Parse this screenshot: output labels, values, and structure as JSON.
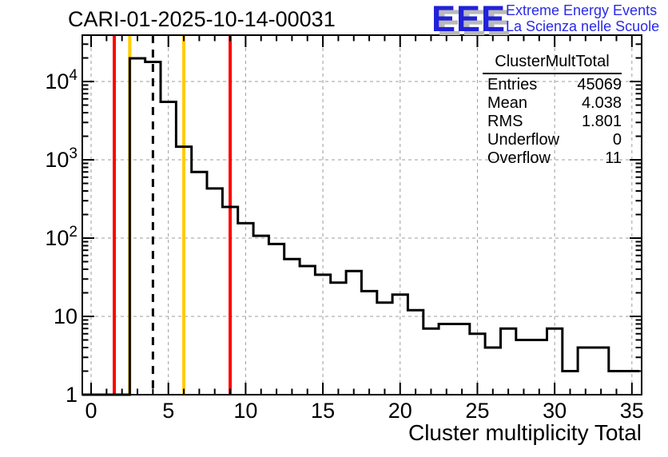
{
  "header": {
    "title": "CARI-01-2025-10-14-00031"
  },
  "logo": {
    "acronym": "EEE",
    "line1": "Extreme Energy Events",
    "line2": "La Scienza nelle Scuole",
    "acronym_color": "#2121d8",
    "shadow_color": "#b9b9b9",
    "text_color": "#2a2ae8"
  },
  "stats": {
    "title": "ClusterMultTotal",
    "rows": [
      {
        "label": "Entries",
        "value": "45069"
      },
      {
        "label": "Mean",
        "value": "4.038"
      },
      {
        "label": "RMS",
        "value": "1.801"
      },
      {
        "label": "Underflow",
        "value": "0"
      },
      {
        "label": "Overflow",
        "value": "11"
      }
    ]
  },
  "chart_data": {
    "type": "bar",
    "subtype": "step-histogram",
    "title": "CARI-01-2025-10-14-00031",
    "xlabel": "Cluster multiplicity Total",
    "ylabel": "",
    "ylog": true,
    "grid": true,
    "bin_width": 1,
    "x_centers": [
      0,
      1,
      2,
      3,
      4,
      5,
      6,
      7,
      8,
      9,
      10,
      11,
      12,
      13,
      14,
      15,
      16,
      17,
      18,
      19,
      20,
      21,
      22,
      23,
      24,
      25,
      26,
      27,
      28,
      29,
      30,
      31,
      32,
      33,
      34,
      35
    ],
    "values": [
      0,
      0,
      0,
      19800,
      17800,
      5500,
      1470,
      700,
      430,
      250,
      155,
      107,
      84,
      54,
      44,
      34,
      27,
      38,
      21,
      15,
      19,
      12,
      7,
      8,
      8,
      6,
      4,
      7,
      5,
      5,
      7,
      2,
      4,
      4,
      2,
      2
    ],
    "xlim": [
      -0.57,
      35.63
    ],
    "ylim": [
      1,
      39100
    ],
    "xticks": [
      0,
      5,
      10,
      15,
      20,
      25,
      30,
      35
    ],
    "yticks": [
      {
        "v": 1,
        "base": "1",
        "exp": ""
      },
      {
        "v": 10,
        "base": "10",
        "exp": ""
      },
      {
        "v": 100,
        "base": "10",
        "exp": "2"
      },
      {
        "v": 1000,
        "base": "10",
        "exp": "3"
      },
      {
        "v": 10000,
        "base": "10",
        "exp": "4"
      }
    ],
    "marker_lines": [
      {
        "x": 1.5,
        "color": "#ff0000",
        "style": "solid",
        "name": "alarm-low-line"
      },
      {
        "x": 2.5,
        "color": "#ffcc00",
        "style": "solid",
        "name": "warn-low-line"
      },
      {
        "x": 4.0,
        "color": "#000000",
        "style": "dashed",
        "name": "mean-marker-line"
      },
      {
        "x": 6.0,
        "color": "#ffcc00",
        "style": "solid",
        "name": "warn-high-line"
      },
      {
        "x": 9.0,
        "color": "#ff0000",
        "style": "solid",
        "name": "alarm-high-line"
      }
    ],
    "line_color": "#000000",
    "grid_color": "#9c9c9c"
  }
}
